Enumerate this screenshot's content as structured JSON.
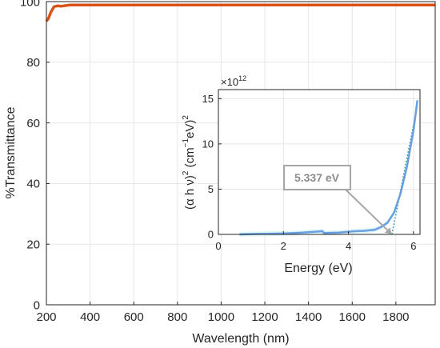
{
  "chart_data": [
    {
      "type": "line",
      "xlabel": "Wavelength (nm)",
      "ylabel": "%Transmittance",
      "xlim": [
        200,
        1980
      ],
      "ylim": [
        0,
        100
      ],
      "xticks": [
        200,
        400,
        600,
        800,
        1000,
        1200,
        1400,
        1600,
        1800
      ],
      "yticks": [
        0,
        20,
        40,
        60,
        80,
        100
      ],
      "grid": true,
      "series": [
        {
          "color": "#D95319",
          "x": [
            200,
            210,
            220,
            235,
            250,
            270,
            290,
            310,
            400,
            600,
            800,
            1000,
            1200,
            1400,
            1600,
            1800,
            1980
          ],
          "y": [
            93.5,
            94.5,
            96.5,
            98.3,
            98.6,
            98.5,
            98.7,
            98.9,
            98.9,
            98.9,
            98.9,
            98.9,
            98.9,
            98.9,
            98.9,
            98.9,
            98.9
          ]
        }
      ]
    },
    {
      "type": "line",
      "xlabel": "Energy (eV)",
      "ylabel": "(α h ν)² (cm⁻¹eV)²",
      "ylabel_parts": {
        "prefix": "(α h ν)",
        "sup1": "2",
        "mid": " (cm",
        "sup2": "−1",
        "suffix": "eV)",
        "sup3": "2"
      },
      "y_exponent": {
        "base": "×10",
        "power": "12"
      },
      "xlim": [
        0,
        6.2
      ],
      "ylim": [
        0,
        16
      ],
      "xticks": [
        0,
        2,
        4,
        6
      ],
      "yticks": [
        0,
        5,
        10,
        15
      ],
      "grid": true,
      "series": [
        {
          "color": "#6A9FE0",
          "x": [
            0.65,
            1.2,
            2.0,
            2.6,
            3.2,
            3.25,
            3.7,
            4.2,
            4.5,
            4.8,
            5.0,
            5.2,
            5.4,
            5.6,
            5.8,
            6.0,
            6.12
          ],
          "y": [
            0.0,
            0.05,
            0.1,
            0.2,
            0.35,
            0.15,
            0.2,
            0.35,
            0.4,
            0.5,
            0.8,
            1.3,
            2.4,
            4.5,
            7.5,
            11.5,
            14.8
          ]
        }
      ],
      "fit_line": {
        "x": [
          5.337,
          6.12
        ],
        "y": [
          0,
          14.3
        ],
        "color": "#3AA0A0"
      },
      "annotation": {
        "label": "5.337 eV",
        "target_x": 5.337,
        "target_y": 0
      }
    }
  ]
}
